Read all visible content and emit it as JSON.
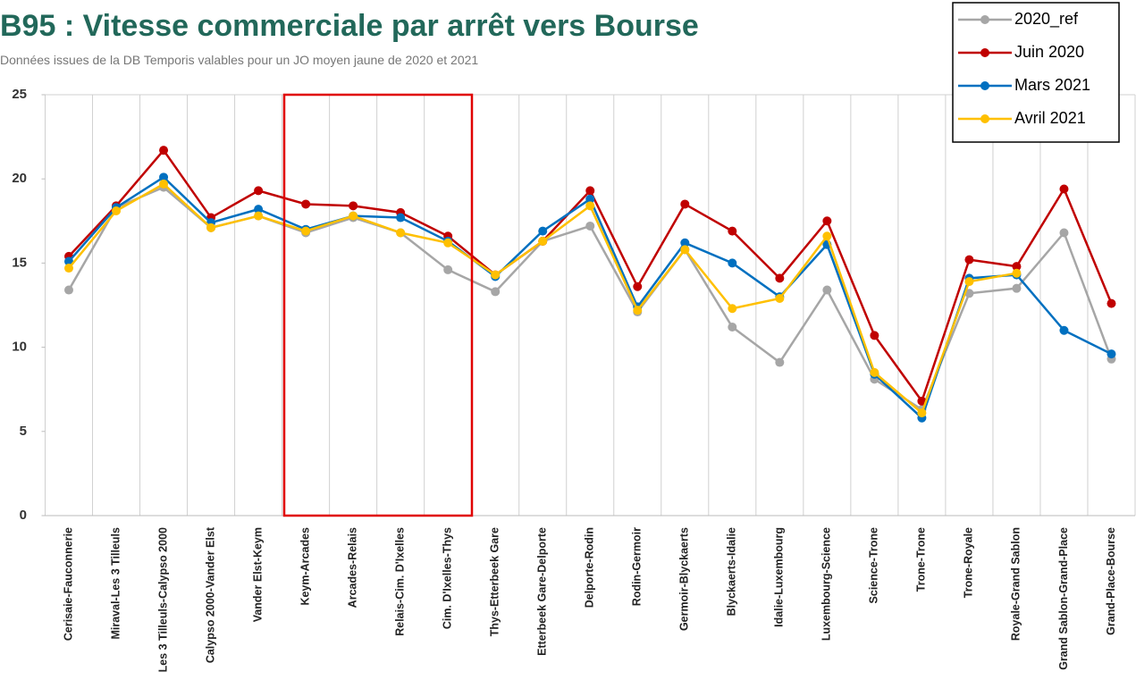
{
  "chart_data": {
    "type": "line",
    "title": "B95 : Vitesse commerciale par arrêt vers Bourse",
    "subtitle": "Données issues de la DB Temporis valables pour un JO moyen jaune de 2020 et 2021",
    "categories": [
      "Cerisaie-Fauconnerie",
      "Miraval-Les 3 Tilleuls",
      "Les 3 Tilleuls-Calypso 2000",
      "Calypso 2000-Vander Elst",
      "Vander Elst-Keym",
      "Keym-Arcades",
      "Arcades-Relais",
      "Relais-Cim. D'Ixelles",
      "Cim. D'Ixelles-Thys",
      "Thys-Etterbeek Gare",
      "Etterbeek Gare-Delporte",
      "Delporte-Rodin",
      "Rodin-Germoir",
      "Germoir-Blyckaerts",
      "Blyckaerts-Idalie",
      "Idalie-Luxembourg",
      "Luxembourg-Science",
      "Science-Trone",
      "Trone-Trone",
      "Trone-Royale",
      "Royale-Grand Sablon",
      "Grand Sablon-Grand-Place",
      "Grand-Place-Bourse"
    ],
    "series": [
      {
        "name": "2020_ref",
        "color": "#a6a6a6",
        "values": [
          13.4,
          18.3,
          19.5,
          17.1,
          17.8,
          16.8,
          17.7,
          16.8,
          14.6,
          13.3,
          16.3,
          17.2,
          12.1,
          15.8,
          11.2,
          9.1,
          13.4,
          8.1,
          6.3,
          13.2,
          13.5,
          16.8,
          9.3
        ]
      },
      {
        "name": "Juin 2020",
        "color": "#c00000",
        "values": [
          15.4,
          18.4,
          21.7,
          17.7,
          19.3,
          18.5,
          18.4,
          18.0,
          16.6,
          14.3,
          16.3,
          19.3,
          13.6,
          18.5,
          16.9,
          14.1,
          17.5,
          10.7,
          6.8,
          15.2,
          14.8,
          19.4,
          12.6
        ]
      },
      {
        "name": "Mars 2021",
        "color": "#0070c0",
        "values": [
          15.1,
          18.3,
          20.1,
          17.4,
          18.2,
          17.0,
          17.8,
          17.7,
          16.3,
          14.2,
          16.9,
          18.8,
          12.4,
          16.2,
          15.0,
          13.0,
          16.1,
          8.4,
          5.8,
          14.1,
          14.3,
          11.0,
          9.6
        ]
      },
      {
        "name": "Avril 2021",
        "color": "#ffc000",
        "values": [
          14.7,
          18.1,
          19.7,
          17.1,
          17.8,
          16.9,
          17.8,
          16.8,
          16.2,
          14.3,
          16.3,
          18.4,
          12.2,
          15.8,
          12.3,
          12.9,
          16.6,
          8.5,
          6.1,
          13.9,
          14.4,
          null,
          null
        ]
      }
    ],
    "ylim": [
      0,
      25
    ],
    "yticks": [
      0,
      5,
      10,
      15,
      20,
      25
    ],
    "grid": "vertical",
    "legend": "top-right"
  }
}
